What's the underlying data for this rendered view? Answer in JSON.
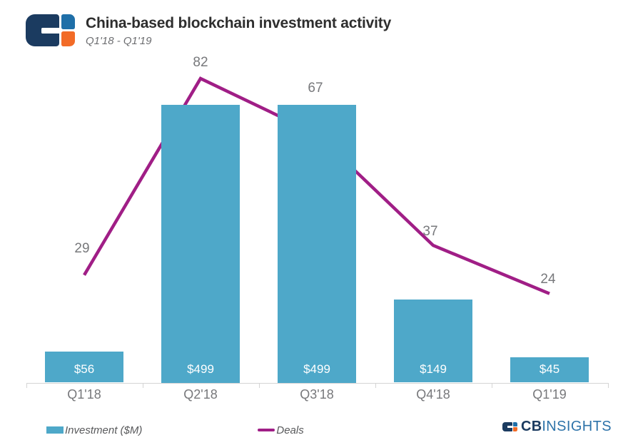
{
  "header": {
    "title": "China-based blockchain investment activity",
    "subtitle": "Q1'18 - Q1'19"
  },
  "legend": {
    "investment_label": "Investment ($M)",
    "deals_label": "Deals"
  },
  "footer": {
    "brand_bold": "CB",
    "brand_light": "INSIGHTS"
  },
  "colors": {
    "bar": "#4EA8C9",
    "line": "#A01E86",
    "label_gray": "#77787B",
    "axis": "#D4D4D4",
    "navy": "#1B3B60",
    "logo_blue": "#1F6FA8",
    "logo_orange": "#F26B27",
    "brand_text_blue": "#2E73A9"
  },
  "chart_data": {
    "type": "bar",
    "subtype": "bar+line combo",
    "title": "China-based blockchain investment activity",
    "subtitle": "Q1'18 - Q1'19",
    "categories": [
      "Q1'18",
      "Q2'18",
      "Q3'18",
      "Q4'18",
      "Q1'19"
    ],
    "series": [
      {
        "name": "Investment ($M)",
        "type": "bar",
        "values": [
          56,
          499,
          499,
          149,
          45
        ],
        "labels": [
          "$56",
          "$499",
          "$499",
          "$149",
          "$45"
        ],
        "color": "#4EA8C9"
      },
      {
        "name": "Deals",
        "type": "line",
        "values": [
          29,
          82,
          67,
          37,
          24
        ],
        "labels": [
          "29",
          "82",
          "67",
          "37",
          "24"
        ],
        "color": "#A01E86"
      }
    ],
    "bar_axis_range": [
      0,
      560
    ],
    "deals_axis_range": [
      0,
      86
    ],
    "grid": false,
    "y_axis_shown": false,
    "legend_position": "bottom-left"
  }
}
